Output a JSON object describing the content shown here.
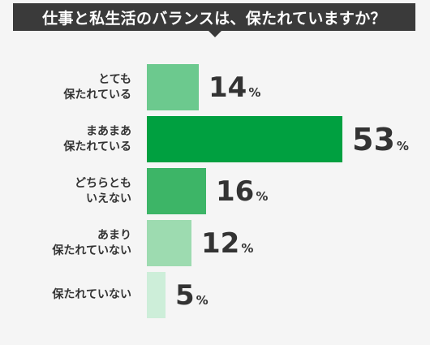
{
  "title": "仕事と私生活のバランスは、保たれていますか？",
  "chart_data": {
    "type": "bar",
    "orientation": "horizontal",
    "unit": "%",
    "categories": [
      [
        "とても",
        "保たれている"
      ],
      [
        "まあまあ",
        "保たれている"
      ],
      [
        "どちらとも",
        "いえない"
      ],
      [
        "あまり",
        "保たれていない"
      ],
      [
        "保たれていない"
      ]
    ],
    "values": [
      14,
      53,
      16,
      12,
      5
    ],
    "colors": [
      "#6cc98e",
      "#00a040",
      "#3db567",
      "#9ddbb0",
      "#cdeed9"
    ],
    "xlim": [
      0,
      53
    ],
    "grid": false,
    "legend": "none"
  }
}
